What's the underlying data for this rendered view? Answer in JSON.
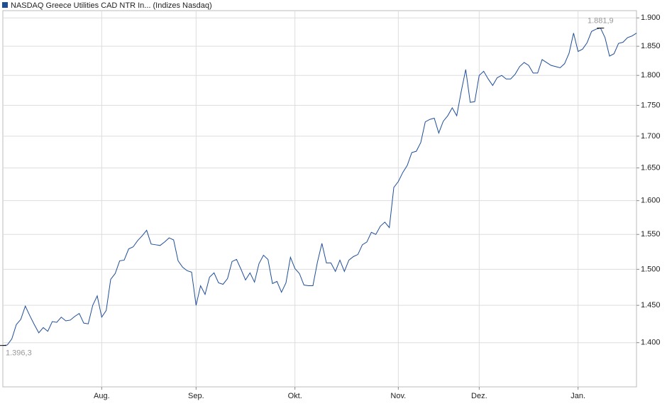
{
  "chart_data": {
    "type": "line",
    "categories": [
      null,
      null,
      null,
      null,
      null,
      null,
      null,
      null,
      null,
      null,
      null,
      null,
      null,
      null,
      null,
      null,
      null,
      null,
      null,
      null,
      null,
      null,
      "Aug.",
      null,
      null,
      null,
      null,
      null,
      null,
      null,
      null,
      null,
      null,
      null,
      null,
      null,
      null,
      null,
      null,
      null,
      null,
      null,
      null,
      "Sep.",
      null,
      null,
      null,
      null,
      null,
      null,
      null,
      null,
      null,
      null,
      null,
      null,
      null,
      null,
      null,
      null,
      null,
      null,
      null,
      null,
      null,
      "Okt.",
      null,
      null,
      null,
      null,
      null,
      null,
      null,
      null,
      null,
      null,
      null,
      null,
      null,
      null,
      null,
      null,
      null,
      null,
      null,
      null,
      null,
      null,
      "Nov.",
      null,
      null,
      null,
      null,
      null,
      null,
      null,
      null,
      null,
      null,
      null,
      null,
      null,
      null,
      null,
      null,
      null,
      "Dez.",
      null,
      null,
      null,
      null,
      null,
      null,
      null,
      null,
      null,
      null,
      null,
      null,
      null,
      null,
      null,
      null,
      null,
      null,
      null,
      null,
      null,
      "Jan.",
      null,
      null,
      null,
      null,
      null,
      null,
      null,
      null,
      null,
      null,
      null,
      null,
      null
    ],
    "series": [
      {
        "name": "NASDAQ Greece Utilities CAD NTR In... (Indizes Nasdaq)",
        "color": "#1f4e99",
        "values": [
          1396.3,
          1397,
          1405,
          1424,
          1431,
          1449,
          1436,
          1424,
          1413,
          1420,
          1415,
          1428,
          1427,
          1434,
          1429,
          1430,
          1435,
          1439,
          1426,
          1425,
          1450,
          1463,
          1434,
          1443,
          1486,
          1494,
          1512,
          1513,
          1529,
          1532,
          1541,
          1548,
          1556,
          1536,
          1535,
          1534,
          1539,
          1545,
          1542,
          1512,
          1503,
          1498,
          1496,
          1450,
          1477,
          1465,
          1489,
          1495,
          1481,
          1479,
          1487,
          1511,
          1514,
          1500,
          1485,
          1495,
          1482,
          1508,
          1520,
          1514,
          1480,
          1483,
          1468,
          1481,
          1517,
          1501,
          1494,
          1478,
          1477,
          1477,
          1510,
          1537,
          1509,
          1509,
          1497,
          1513,
          1497,
          1513,
          1518,
          1521,
          1535,
          1539,
          1553,
          1550,
          1562,
          1568,
          1560,
          1620,
          1629,
          1643,
          1654,
          1674,
          1676,
          1690,
          1723,
          1727,
          1729,
          1705,
          1724,
          1733,
          1746,
          1733,
          1773,
          1810,
          1755,
          1756,
          1800,
          1807,
          1794,
          1783,
          1796,
          1800,
          1794,
          1794,
          1802,
          1815,
          1822,
          1817,
          1804,
          1804,
          1827,
          1822,
          1817,
          1815,
          1813,
          1820,
          1838,
          1873,
          1841,
          1845,
          1856,
          1876,
          1880,
          1881.9,
          1865,
          1833,
          1837,
          1855,
          1857,
          1865,
          1868,
          1873
        ],
        "value_labels": [
          "1.396,3",
          null,
          null,
          null,
          null,
          null,
          null,
          null,
          null,
          null,
          null,
          null,
          null,
          null,
          null,
          null,
          null,
          null,
          null,
          null,
          null,
          null,
          null,
          null,
          null,
          null,
          null,
          null,
          null,
          null,
          null,
          null,
          null,
          null,
          null,
          null,
          null,
          null,
          null,
          null,
          null,
          null,
          null,
          null,
          null,
          null,
          null,
          null,
          null,
          null,
          null,
          null,
          null,
          null,
          null,
          null,
          null,
          null,
          null,
          null,
          null,
          null,
          null,
          null,
          null,
          null,
          null,
          null,
          null,
          null,
          null,
          null,
          null,
          null,
          null,
          null,
          null,
          null,
          null,
          null,
          null,
          null,
          null,
          null,
          null,
          null,
          null,
          null,
          null,
          null,
          null,
          null,
          null,
          null,
          null,
          null,
          null,
          null,
          null,
          null,
          null,
          null,
          null,
          null,
          null,
          null,
          null,
          null,
          null,
          null,
          null,
          null,
          null,
          null,
          null,
          null,
          null,
          null,
          null,
          null,
          null,
          null,
          null,
          null,
          null,
          null,
          null,
          null,
          null,
          null,
          null,
          null,
          null,
          "1.881,9",
          null,
          null,
          null,
          null,
          null,
          null,
          null,
          null
        ]
      }
    ],
    "ylim": [
      1343,
      1913
    ],
    "log_y": true,
    "grid": true,
    "yticks": [
      {
        "value": 1400,
        "label": "1.400"
      },
      {
        "value": 1450,
        "label": "1.450"
      },
      {
        "value": 1500,
        "label": "1.500"
      },
      {
        "value": 1550,
        "label": "1.550"
      },
      {
        "value": 1600,
        "label": "1.600"
      },
      {
        "value": 1650,
        "label": "1.650"
      },
      {
        "value": 1700,
        "label": "1.700"
      },
      {
        "value": 1750,
        "label": "1.750"
      },
      {
        "value": 1800,
        "label": "1.800"
      },
      {
        "value": 1850,
        "label": "1.850"
      },
      {
        "value": 1900,
        "label": "1.900"
      }
    ]
  }
}
